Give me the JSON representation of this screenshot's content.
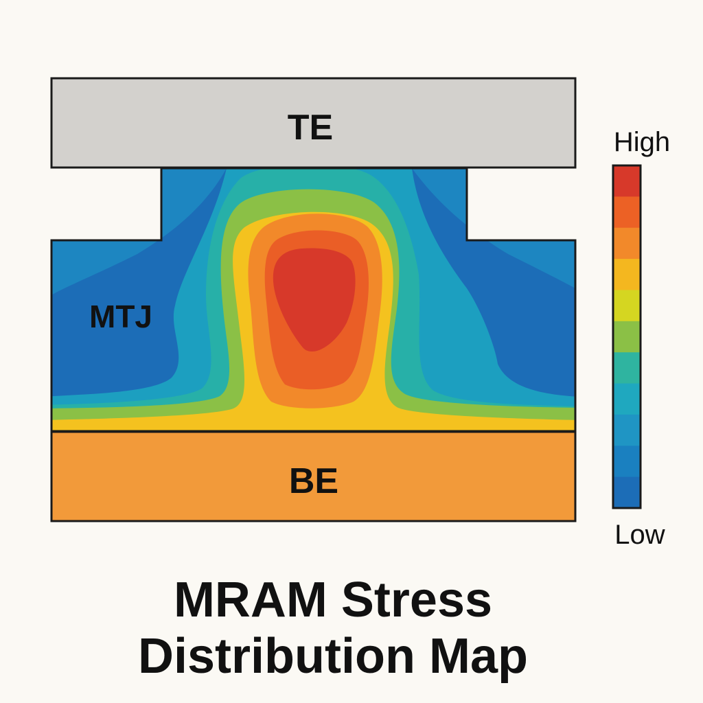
{
  "labels": {
    "top_electrode": "TE",
    "junction": "MTJ",
    "bottom_electrode": "BE"
  },
  "colorbar": {
    "high_label": "High",
    "low_label": "Low",
    "colors": [
      "#1c6db7",
      "#1a80c0",
      "#1f95c4",
      "#1fa8bf",
      "#2fb4a0",
      "#8bc046",
      "#d5d621",
      "#f4b71f",
      "#f2892a",
      "#ec6125",
      "#d7392a"
    ]
  },
  "title": {
    "line1": "MRAM Stress",
    "line2": "Distribution Map"
  },
  "colors": {
    "background": "#fbf9f4",
    "top_electrode_fill": "#d3d1cd",
    "bottom_electrode_fill": "#f29a3a",
    "outline": "#1a1a1a",
    "low_stress": "#1c6db7",
    "high_stress": "#d7392a"
  }
}
